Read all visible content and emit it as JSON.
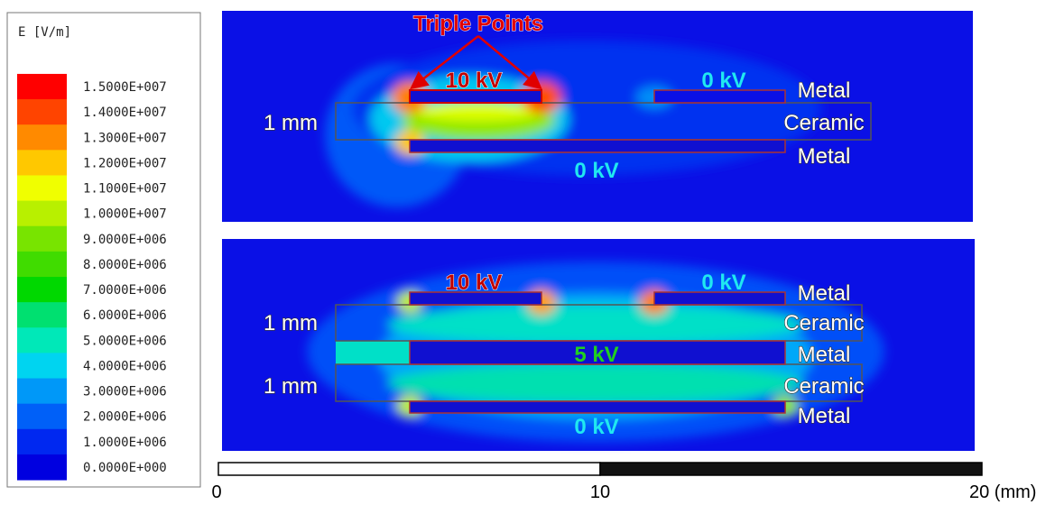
{
  "legend": {
    "title": "E [V/m]",
    "levels": [
      {
        "label": "1.5000E+007",
        "color": "#ff0000"
      },
      {
        "label": "1.4000E+007",
        "color": "#ff4400"
      },
      {
        "label": "1.3000E+007",
        "color": "#ff8a00"
      },
      {
        "label": "1.2000E+007",
        "color": "#ffc800"
      },
      {
        "label": "1.1000E+007",
        "color": "#f0ff00"
      },
      {
        "label": "1.0000E+007",
        "color": "#b8f000"
      },
      {
        "label": "9.0000E+006",
        "color": "#78e400"
      },
      {
        "label": "8.0000E+006",
        "color": "#40dc00"
      },
      {
        "label": "7.0000E+006",
        "color": "#00d800"
      },
      {
        "label": "6.0000E+006",
        "color": "#00e070"
      },
      {
        "label": "5.0000E+006",
        "color": "#00e8b8"
      },
      {
        "label": "4.0000E+006",
        "color": "#00d4f0"
      },
      {
        "label": "3.0000E+006",
        "color": "#0098f8"
      },
      {
        "label": "2.0000E+006",
        "color": "#0060f8"
      },
      {
        "label": "1.0000E+006",
        "color": "#0028f0"
      },
      {
        "label": "0.0000E+000",
        "color": "#0000e0"
      }
    ]
  },
  "panels": [
    {
      "labels": [
        "Triple Points",
        "10 kV",
        "0 kV",
        "Metal",
        "Ceramic",
        "Metal",
        "1 mm",
        "0 kV"
      ]
    },
    {
      "labels": [
        "10 kV",
        "0 kV",
        "Metal",
        "1 mm",
        "Ceramic",
        "5 kV",
        "Metal",
        "1 mm",
        "Ceramic",
        "Metal",
        "0 kV"
      ]
    }
  ],
  "scale_bar": {
    "labels": [
      "0",
      "10",
      "20 (mm)"
    ]
  }
}
